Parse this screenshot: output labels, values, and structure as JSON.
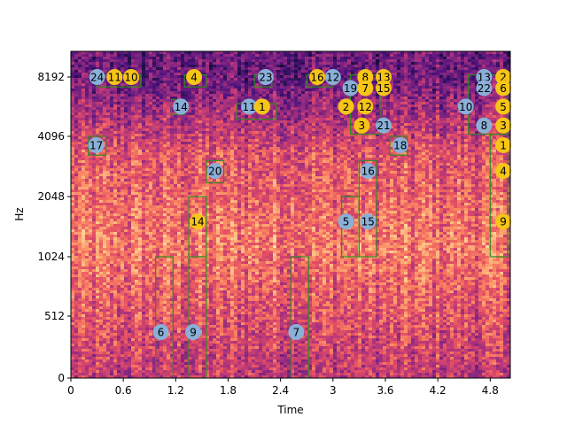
{
  "chart_data": {
    "type": "heatmap",
    "title": "",
    "xlabel": "Time",
    "ylabel": "Hz",
    "xlim": [
      0,
      5.03
    ],
    "y_scale": "log2",
    "y_ticks": [
      "0",
      "512",
      "1024",
      "2048",
      "4096",
      "8192"
    ],
    "x_ticks": [
      "0",
      "0.6",
      "1.2",
      "1.8",
      "2.4",
      "3",
      "3.6",
      "4.2",
      "4.8"
    ],
    "colormap": "magma",
    "box_color": "#2e8b22",
    "gold_color": "#f5c518",
    "blue_color": "#8ab0d8",
    "boxes": [
      {
        "x0": 0.2,
        "x1": 0.4,
        "f0": 3300,
        "f1": 4100
      },
      {
        "x0": 0.3,
        "x1": 0.8,
        "f0": 7300,
        "f1": 8400
      },
      {
        "x0": 1.3,
        "x1": 1.55,
        "f0": 7300,
        "f1": 8400
      },
      {
        "x0": 1.15,
        "x1": 1.3,
        "f0": 5300,
        "f1": 6300
      },
      {
        "x0": 1.9,
        "x1": 2.35,
        "f0": 5000,
        "f1": 6000
      },
      {
        "x0": 2.1,
        "x1": 2.3,
        "f0": 7300,
        "f1": 8400
      },
      {
        "x0": 2.7,
        "x1": 3.0,
        "f0": 7300,
        "f1": 8400
      },
      {
        "x0": 3.2,
        "x1": 3.55,
        "f0": 4200,
        "f1": 8400
      },
      {
        "x0": 3.65,
        "x1": 3.85,
        "f0": 3300,
        "f1": 4100
      },
      {
        "x0": 4.55,
        "x1": 5.0,
        "f0": 4200,
        "f1": 8400
      },
      {
        "x0": 1.55,
        "x1": 1.75,
        "f0": 2400,
        "f1": 3100
      },
      {
        "x0": 1.35,
        "x1": 1.55,
        "f0": 1024,
        "f1": 2048
      },
      {
        "x0": 0.97,
        "x1": 1.17,
        "f0": 0,
        "f1": 1024
      },
      {
        "x0": 1.35,
        "x1": 1.55,
        "f0": 0,
        "f1": 1024
      },
      {
        "x0": 2.52,
        "x1": 2.72,
        "f0": 0,
        "f1": 1024
      },
      {
        "x0": 3.1,
        "x1": 3.3,
        "f0": 1024,
        "f1": 2048
      },
      {
        "x0": 3.3,
        "x1": 3.5,
        "f0": 1024,
        "f1": 3100
      },
      {
        "x0": 4.8,
        "x1": 5.0,
        "f0": 1024,
        "f1": 4200
      }
    ],
    "markers": [
      {
        "label": "24",
        "t": 0.3,
        "f": 8192,
        "color": "blue"
      },
      {
        "label": "11",
        "t": 0.5,
        "f": 8192,
        "color": "gold"
      },
      {
        "label": "10",
        "t": 0.69,
        "f": 8192,
        "color": "gold"
      },
      {
        "label": "4",
        "t": 1.41,
        "f": 8192,
        "color": "gold"
      },
      {
        "label": "23",
        "t": 2.23,
        "f": 8192,
        "color": "blue"
      },
      {
        "label": "16",
        "t": 2.82,
        "f": 8192,
        "color": "gold"
      },
      {
        "label": "12",
        "t": 3.0,
        "f": 8192,
        "color": "blue"
      },
      {
        "label": "8",
        "t": 3.37,
        "f": 8192,
        "color": "gold"
      },
      {
        "label": "13",
        "t": 3.58,
        "f": 8192,
        "color": "gold"
      },
      {
        "label": "13",
        "t": 4.73,
        "f": 8192,
        "color": "blue"
      },
      {
        "label": "2",
        "t": 4.95,
        "f": 8192,
        "color": "gold"
      },
      {
        "label": "19",
        "t": 3.2,
        "f": 7200,
        "color": "blue"
      },
      {
        "label": "7",
        "t": 3.37,
        "f": 7200,
        "color": "gold"
      },
      {
        "label": "15",
        "t": 3.58,
        "f": 7200,
        "color": "gold"
      },
      {
        "label": "22",
        "t": 4.73,
        "f": 7200,
        "color": "blue"
      },
      {
        "label": "6",
        "t": 4.95,
        "f": 7200,
        "color": "gold"
      },
      {
        "label": "14",
        "t": 1.26,
        "f": 5800,
        "color": "blue"
      },
      {
        "label": "11",
        "t": 2.04,
        "f": 5800,
        "color": "blue"
      },
      {
        "label": "1",
        "t": 2.19,
        "f": 5800,
        "color": "gold"
      },
      {
        "label": "2",
        "t": 3.15,
        "f": 5800,
        "color": "gold"
      },
      {
        "label": "12",
        "t": 3.37,
        "f": 5800,
        "color": "gold"
      },
      {
        "label": "10",
        "t": 4.52,
        "f": 5800,
        "color": "blue"
      },
      {
        "label": "5",
        "t": 4.95,
        "f": 5800,
        "color": "gold"
      },
      {
        "label": "3",
        "t": 3.33,
        "f": 4650,
        "color": "gold"
      },
      {
        "label": "21",
        "t": 3.58,
        "f": 4650,
        "color": "blue"
      },
      {
        "label": "8",
        "t": 4.73,
        "f": 4650,
        "color": "blue"
      },
      {
        "label": "3",
        "t": 4.95,
        "f": 4650,
        "color": "gold"
      },
      {
        "label": "17",
        "t": 0.29,
        "f": 3700,
        "color": "blue"
      },
      {
        "label": "18",
        "t": 3.77,
        "f": 3700,
        "color": "blue"
      },
      {
        "label": "1",
        "t": 4.95,
        "f": 3700,
        "color": "gold"
      },
      {
        "label": "20",
        "t": 1.65,
        "f": 2750,
        "color": "blue"
      },
      {
        "label": "16",
        "t": 3.4,
        "f": 2750,
        "color": "blue"
      },
      {
        "label": "4",
        "t": 4.95,
        "f": 2750,
        "color": "gold"
      },
      {
        "label": "14",
        "t": 1.45,
        "f": 1536,
        "color": "gold"
      },
      {
        "label": "5",
        "t": 3.15,
        "f": 1536,
        "color": "blue"
      },
      {
        "label": "15",
        "t": 3.4,
        "f": 1536,
        "color": "blue"
      },
      {
        "label": "9",
        "t": 4.95,
        "f": 1536,
        "color": "gold"
      },
      {
        "label": "6",
        "t": 1.03,
        "f": 380,
        "color": "blue"
      },
      {
        "label": "9",
        "t": 1.4,
        "f": 380,
        "color": "blue"
      },
      {
        "label": "7",
        "t": 2.58,
        "f": 380,
        "color": "blue"
      }
    ]
  }
}
